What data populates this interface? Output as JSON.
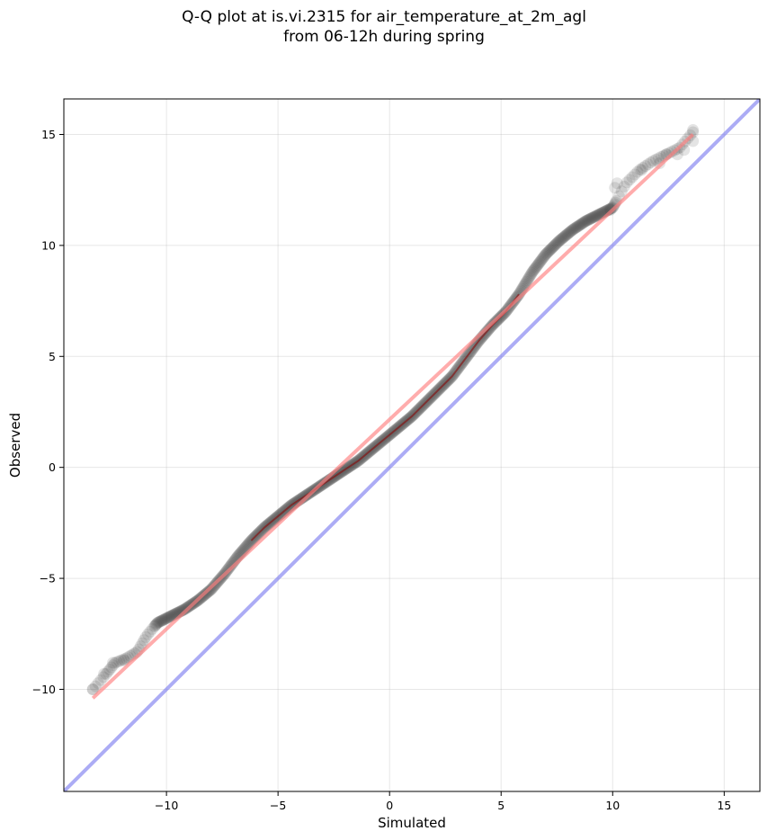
{
  "chart_data": {
    "type": "scatter",
    "title_line1": "Q-Q plot at is.vi.2315 for air_temperature_at_2m_agl",
    "title_line2": "from 06-12h during spring",
    "xlabel": "Simulated",
    "ylabel": "Observed",
    "xlim": [
      -14.6,
      16.6
    ],
    "ylim": [
      -14.6,
      16.6
    ],
    "xticks": [
      -10,
      -5,
      0,
      5,
      10,
      15
    ],
    "yticks": [
      -10,
      -5,
      0,
      5,
      10,
      15
    ],
    "xtick_labels": [
      "−10",
      "−5",
      "0",
      "5",
      "10",
      "15"
    ],
    "ytick_labels": [
      "−10",
      "−5",
      "0",
      "5",
      "10",
      "15"
    ],
    "grid": true,
    "colors": {
      "points": "#404040",
      "fit_line": "#ff8080",
      "identity_line": "#8080f0",
      "dense_core": "#8b0000"
    },
    "fit_line": {
      "x": [
        -13.3,
        13.6
      ],
      "y": [
        -10.4,
        15.0
      ]
    },
    "identity_line": {
      "x": [
        -14.6,
        16.6
      ],
      "y": [
        -14.6,
        16.6
      ]
    },
    "quantile_path": {
      "x": [
        -13.3,
        -12.7,
        -12.3,
        -11.8,
        -11.3,
        -10.9,
        -10.4,
        -9.8,
        -9.2,
        -8.6,
        -8.0,
        -7.4,
        -6.8,
        -6.2,
        -5.6,
        -5.0,
        -4.4,
        -3.8,
        -3.2,
        -2.6,
        -2.0,
        -1.4,
        -0.8,
        -0.2,
        0.4,
        1.0,
        1.6,
        2.2,
        2.8,
        3.4,
        4.0,
        4.6,
        5.2,
        5.8,
        6.4,
        7.0,
        7.6,
        8.2,
        8.8,
        9.4,
        10.0,
        10.6,
        11.2,
        11.8,
        12.4,
        13.0,
        13.6
      ],
      "y": [
        -10.0,
        -9.3,
        -8.8,
        -8.6,
        -8.3,
        -7.6,
        -7.0,
        -6.7,
        -6.4,
        -6.0,
        -5.5,
        -4.8,
        -4.0,
        -3.3,
        -2.7,
        -2.2,
        -1.7,
        -1.3,
        -0.9,
        -0.5,
        -0.1,
        0.3,
        0.8,
        1.3,
        1.8,
        2.3,
        2.9,
        3.5,
        4.1,
        4.9,
        5.7,
        6.4,
        7.0,
        7.8,
        8.8,
        9.6,
        10.2,
        10.7,
        11.1,
        11.4,
        11.7,
        12.8,
        13.4,
        13.8,
        14.1,
        14.4,
        15.1
      ]
    },
    "sparse_points": {
      "x": [
        -13.3,
        -12.8,
        -12.4,
        -11.9,
        9.9,
        10.1,
        10.2,
        11.3,
        12.1,
        12.4,
        12.9,
        13.2,
        13.6,
        13.6
      ],
      "y": [
        -10.0,
        -9.3,
        -8.8,
        -8.7,
        11.6,
        12.6,
        12.8,
        13.4,
        13.7,
        14.1,
        14.1,
        14.3,
        14.7,
        15.2
      ]
    }
  }
}
